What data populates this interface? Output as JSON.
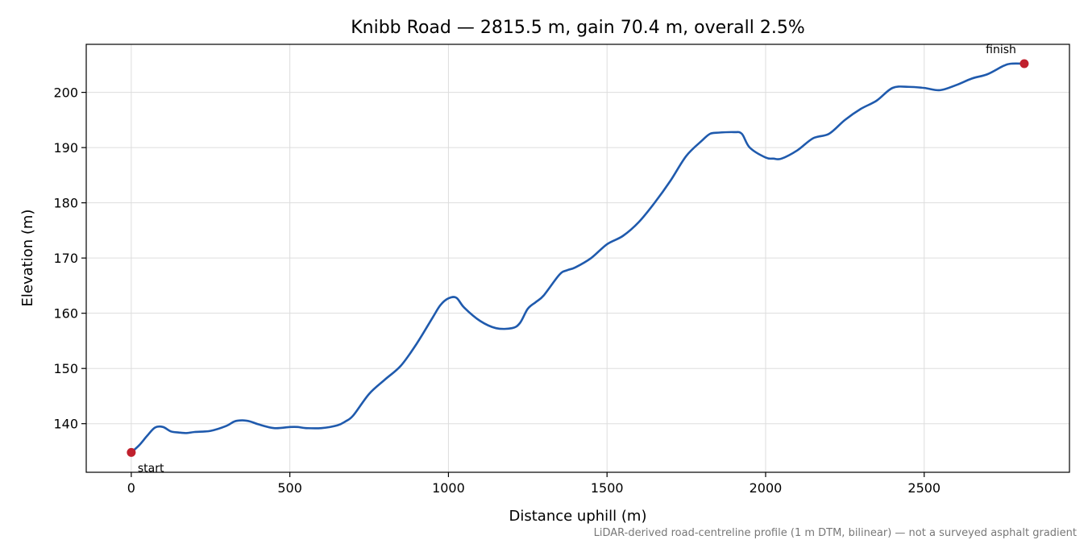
{
  "chart_data": {
    "type": "line",
    "title": "Knibb Road — 2815.5 m, gain 70.4 m, overall 2.5%",
    "xlabel": "Distance uphill (m)",
    "ylabel": "Elevation (m)",
    "footnote": "LiDAR-derived road-centreline profile (1 m DTM, bilinear) — not a surveyed asphalt gradient",
    "xlim": [
      -142,
      2958
    ],
    "ylim": [
      131.2,
      208.7
    ],
    "x_ticks": [
      0,
      500,
      1000,
      1500,
      2000,
      2500
    ],
    "y_ticks": [
      140,
      150,
      160,
      170,
      180,
      190,
      200
    ],
    "grid": true,
    "line_color": "#1f5aad",
    "marker_color": "#c0202d",
    "series": [
      {
        "x": [
          0,
          25,
          50,
          75,
          100,
          125,
          150,
          175,
          200,
          250,
          300,
          325,
          350,
          375,
          400,
          450,
          500,
          525,
          550,
          600,
          650,
          675,
          700,
          750,
          800,
          850,
          900,
          950,
          975,
          1000,
          1025,
          1050,
          1100,
          1150,
          1200,
          1225,
          1250,
          1275,
          1300,
          1350,
          1375,
          1400,
          1450,
          1500,
          1550,
          1600,
          1650,
          1700,
          1750,
          1800,
          1825,
          1850,
          1900,
          1925,
          1950,
          2000,
          2025,
          2050,
          2100,
          2150,
          2200,
          2250,
          2300,
          2350,
          2400,
          2450,
          2500,
          2550,
          2600,
          2650,
          2700,
          2750,
          2775,
          2815.5
        ],
        "y": [
          134.8,
          136.1,
          137.8,
          139.3,
          139.4,
          138.6,
          138.4,
          138.3,
          138.5,
          138.7,
          139.6,
          140.4,
          140.6,
          140.4,
          139.9,
          139.2,
          139.4,
          139.4,
          139.2,
          139.2,
          139.7,
          140.4,
          141.5,
          145.4,
          148.0,
          150.5,
          154.5,
          159.2,
          161.5,
          162.7,
          162.8,
          161.0,
          158.6,
          157.3,
          157.3,
          158.2,
          160.8,
          162.0,
          163.2,
          167.0,
          167.8,
          168.3,
          170.0,
          172.5,
          174.0,
          176.5,
          180.0,
          184.0,
          188.5,
          191.3,
          192.5,
          192.7,
          192.8,
          192.5,
          190.0,
          188.2,
          188.0,
          188.0,
          189.5,
          191.7,
          192.5,
          195.0,
          197.0,
          198.5,
          200.8,
          201.0,
          200.8,
          200.4,
          201.3,
          202.5,
          203.3,
          204.8,
          205.2,
          205.2
        ]
      }
    ],
    "annotations": [
      {
        "label": "start",
        "x": 0,
        "y": 134.8
      },
      {
        "label": "finish",
        "x": 2815.5,
        "y": 205.2
      }
    ]
  }
}
